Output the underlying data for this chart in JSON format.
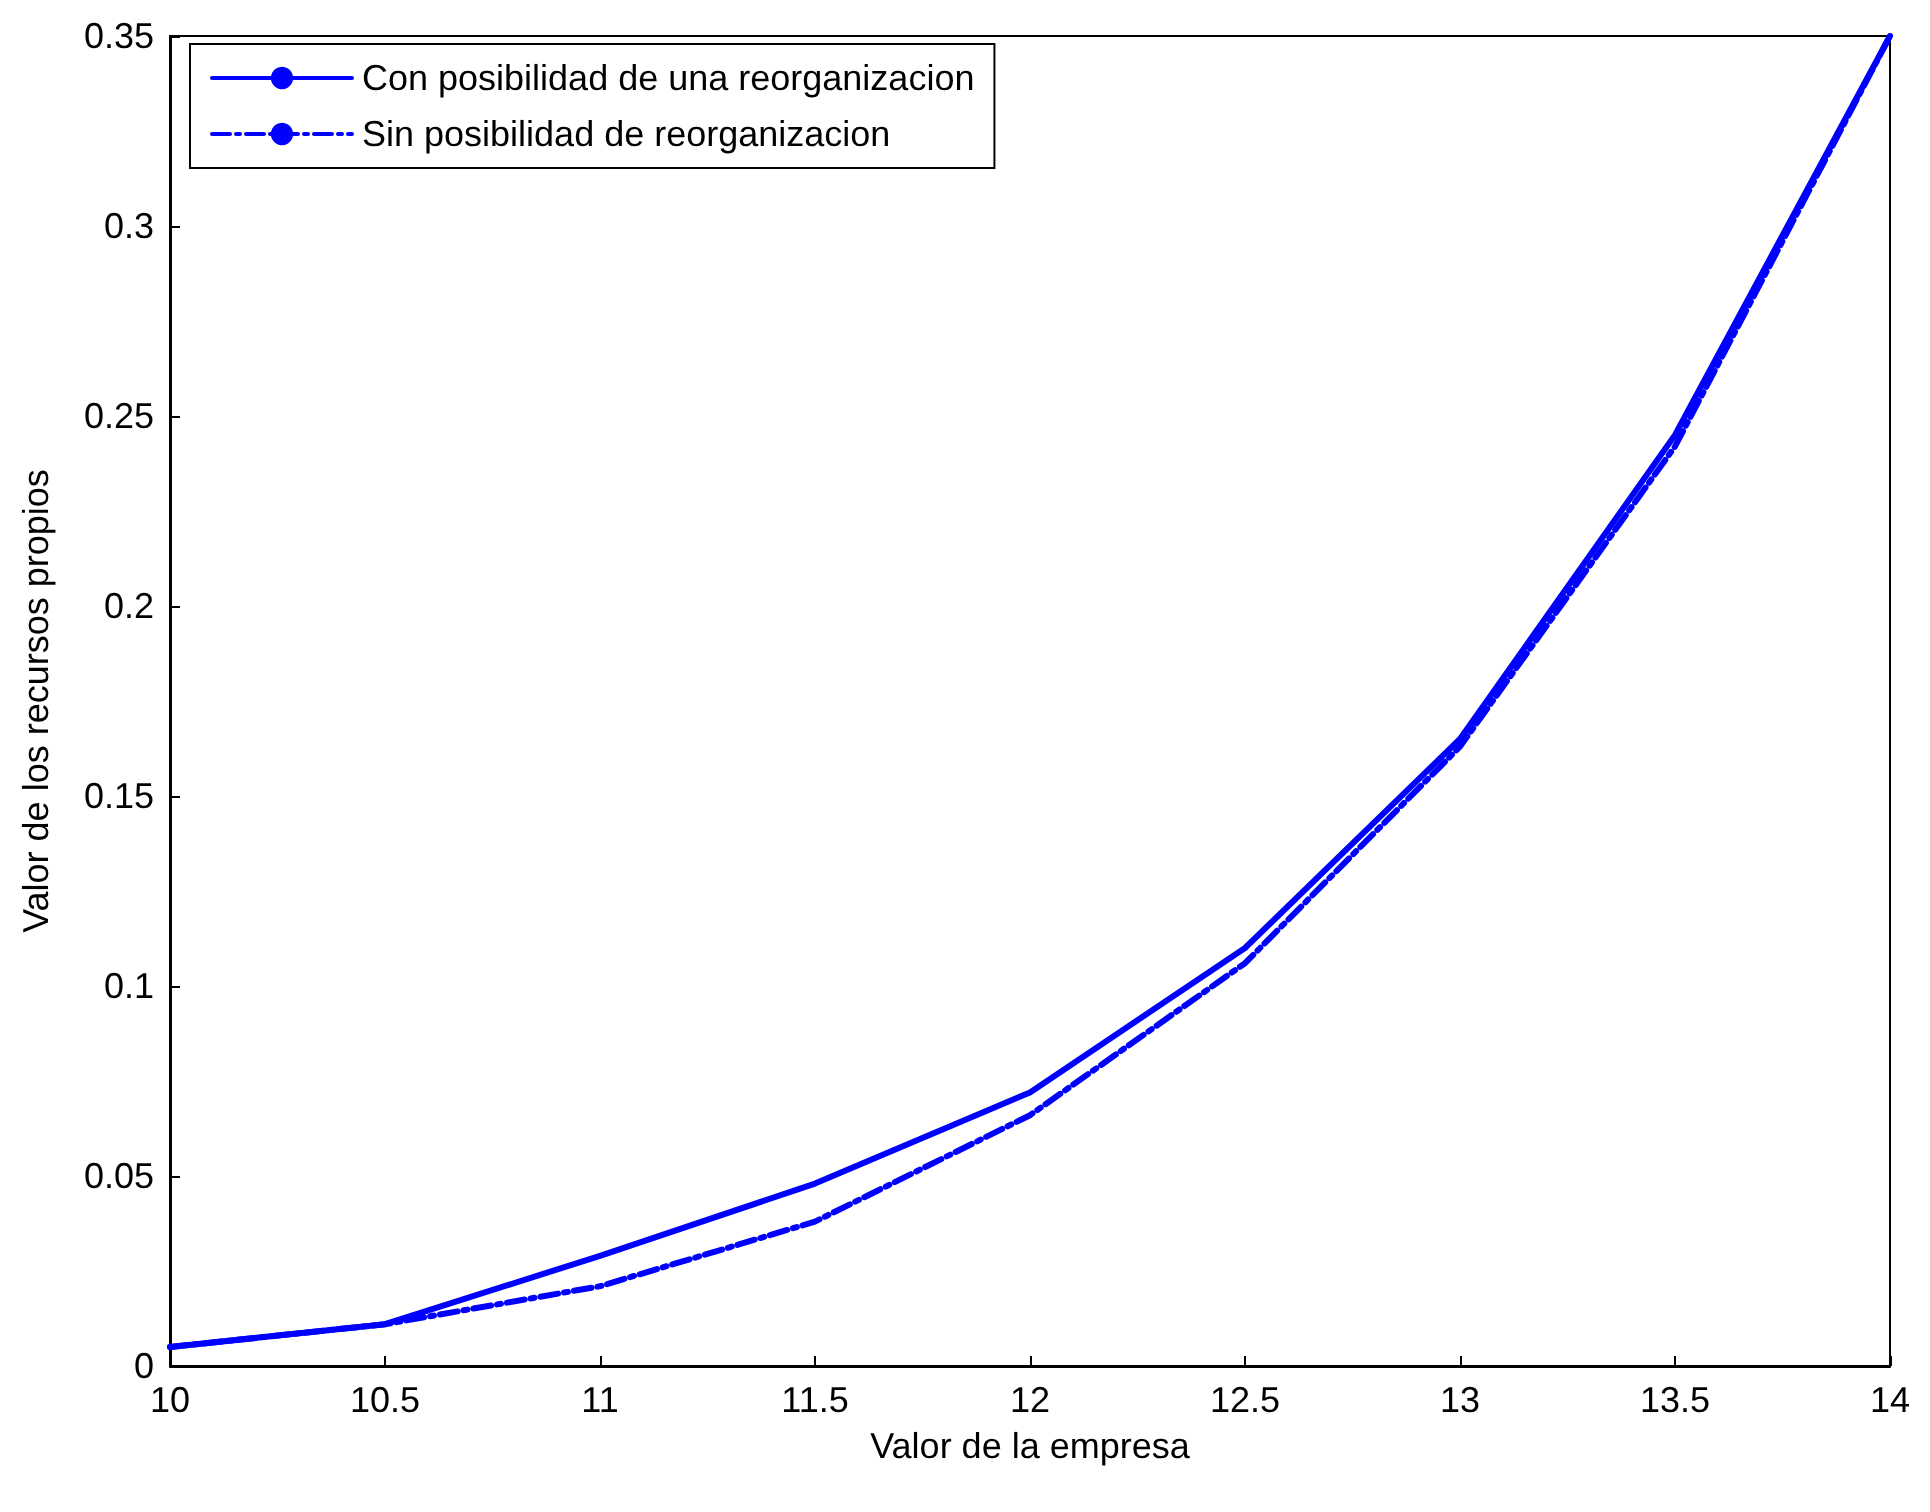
{
  "chart_data": {
    "type": "line",
    "xlabel": "Valor de la empresa",
    "ylabel": "Valor de los recursos propios",
    "x": [
      10,
      10.5,
      11,
      11.5,
      12,
      12.5,
      13,
      13.5,
      14
    ],
    "series": [
      {
        "name": "Con posibilidad de una reorganizacion",
        "color": "#0000ff",
        "line_style": "solid",
        "values": [
          0.005,
          0.011,
          0.029,
          0.048,
          0.072,
          0.11,
          0.165,
          0.245,
          0.35
        ]
      },
      {
        "name": "Sin posibilidad de reorganizacion",
        "color": "#0000ff",
        "line_style": "dashdot",
        "values": [
          0.005,
          0.011,
          0.021,
          0.038,
          0.066,
          0.106,
          0.163,
          0.242,
          0.35
        ]
      }
    ],
    "xlim": [
      10,
      14
    ],
    "xticks": [
      10,
      10.5,
      11,
      11.5,
      12,
      12.5,
      13,
      13.5,
      14
    ],
    "ylim": [
      0,
      0.35
    ],
    "yticks": [
      0,
      0.05,
      0.1,
      0.15,
      0.2,
      0.25,
      0.3,
      0.35
    ],
    "grid": false,
    "legend": "top left",
    "marker": "none"
  }
}
